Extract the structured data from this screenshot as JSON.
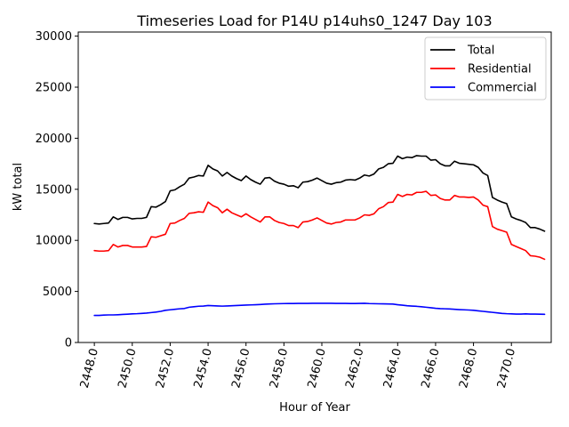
{
  "chart_data": {
    "type": "line",
    "title": "Timeseries Load for P14U p14uhs0_1247  Day 103",
    "xlabel": "Hour of Year",
    "ylabel": "kW total",
    "xlim": [
      2447.15,
      2472.1
    ],
    "ylim": [
      0,
      30400
    ],
    "x_ticks": [
      2448,
      2450,
      2452,
      2454,
      2456,
      2458,
      2460,
      2462,
      2464,
      2466,
      2468,
      2470
    ],
    "x_tick_labels": [
      "2448.0",
      "2450.0",
      "2452.0",
      "2454.0",
      "2456.0",
      "2458.0",
      "2460.0",
      "2462.0",
      "2464.0",
      "2466.0",
      "2468.0",
      "2470.0"
    ],
    "y_ticks": [
      0,
      5000,
      10000,
      15000,
      20000,
      25000,
      30000
    ],
    "y_tick_labels": [
      "0",
      "5000",
      "10000",
      "15000",
      "20000",
      "25000",
      "30000"
    ],
    "grid": false,
    "legend_position": "top-right",
    "x": [
      2448.0,
      2448.25,
      2448.5,
      2448.75,
      2449.0,
      2449.25,
      2449.5,
      2449.75,
      2450.0,
      2450.25,
      2450.5,
      2450.75,
      2451.0,
      2451.25,
      2451.5,
      2451.75,
      2452.0,
      2452.25,
      2452.5,
      2452.75,
      2453.0,
      2453.25,
      2453.5,
      2453.75,
      2454.0,
      2454.25,
      2454.5,
      2454.75,
      2455.0,
      2455.25,
      2455.5,
      2455.75,
      2456.0,
      2456.25,
      2456.5,
      2456.75,
      2457.0,
      2457.25,
      2457.5,
      2457.75,
      2458.0,
      2458.25,
      2458.5,
      2458.75,
      2459.0,
      2459.25,
      2459.5,
      2459.75,
      2460.0,
      2460.25,
      2460.5,
      2460.75,
      2461.0,
      2461.25,
      2461.5,
      2461.75,
      2462.0,
      2462.25,
      2462.5,
      2462.75,
      2463.0,
      2463.25,
      2463.5,
      2463.75,
      2464.0,
      2464.25,
      2464.5,
      2464.75,
      2465.0,
      2465.25,
      2465.5,
      2465.75,
      2466.0,
      2466.25,
      2466.5,
      2466.75,
      2467.0,
      2467.25,
      2467.5,
      2467.75,
      2468.0,
      2468.25,
      2468.5,
      2468.75,
      2469.0,
      2469.25,
      2469.5,
      2469.75,
      2470.0,
      2470.25,
      2470.5,
      2470.75,
      2471.0,
      2471.25,
      2471.5,
      2471.75
    ],
    "series": [
      {
        "name": "Total",
        "color": "#000000",
        "values": [
          11650,
          11600,
          11650,
          11700,
          12300,
          12050,
          12250,
          12250,
          12100,
          12150,
          12150,
          12250,
          13300,
          13250,
          13500,
          13800,
          14850,
          14950,
          15250,
          15500,
          16100,
          16200,
          16350,
          16300,
          17350,
          17000,
          16800,
          16300,
          16650,
          16300,
          16050,
          15850,
          16300,
          15950,
          15700,
          15500,
          16100,
          16150,
          15800,
          15600,
          15500,
          15300,
          15350,
          15150,
          15700,
          15750,
          15900,
          16100,
          15850,
          15600,
          15500,
          15650,
          15700,
          15900,
          15950,
          15900,
          16100,
          16400,
          16300,
          16500,
          17000,
          17150,
          17500,
          17550,
          18250,
          18000,
          18150,
          18100,
          18300,
          18250,
          18250,
          17850,
          17900,
          17500,
          17300,
          17300,
          17750,
          17550,
          17500,
          17450,
          17400,
          17150,
          16600,
          16350,
          14200,
          13950,
          13750,
          13600,
          12300,
          12100,
          11950,
          11750,
          11250,
          11250,
          11100,
          10900
        ]
      },
      {
        "name": "Residential",
        "color": "#ff0000",
        "values": [
          9000,
          8950,
          8950,
          9000,
          9600,
          9350,
          9500,
          9500,
          9350,
          9350,
          9350,
          9400,
          10350,
          10300,
          10450,
          10600,
          11650,
          11700,
          11950,
          12150,
          12650,
          12700,
          12800,
          12750,
          13750,
          13400,
          13200,
          12700,
          13050,
          12700,
          12500,
          12300,
          12600,
          12300,
          12050,
          11800,
          12300,
          12300,
          11950,
          11750,
          11650,
          11450,
          11450,
          11250,
          11800,
          11850,
          12000,
          12200,
          11950,
          11700,
          11600,
          11750,
          11800,
          12000,
          12000,
          12000,
          12200,
          12500,
          12450,
          12600,
          13100,
          13300,
          13700,
          13750,
          14500,
          14300,
          14500,
          14450,
          14700,
          14700,
          14800,
          14400,
          14450,
          14100,
          13950,
          13950,
          14400,
          14250,
          14250,
          14200,
          14250,
          13950,
          13450,
          13300,
          11350,
          11100,
          10950,
          10800,
          9600,
          9400,
          9200,
          9000,
          8500,
          8450,
          8350,
          8150
        ]
      },
      {
        "name": "Commercial",
        "color": "#0000ff",
        "values": [
          2650,
          2650,
          2680,
          2700,
          2700,
          2720,
          2750,
          2770,
          2800,
          2820,
          2850,
          2880,
          2930,
          2980,
          3050,
          3150,
          3200,
          3250,
          3300,
          3330,
          3450,
          3500,
          3550,
          3570,
          3620,
          3600,
          3580,
          3560,
          3580,
          3600,
          3620,
          3640,
          3660,
          3680,
          3700,
          3720,
          3750,
          3770,
          3790,
          3800,
          3810,
          3815,
          3820,
          3825,
          3830,
          3830,
          3835,
          3840,
          3840,
          3840,
          3835,
          3830,
          3830,
          3825,
          3820,
          3820,
          3830,
          3840,
          3810,
          3800,
          3790,
          3780,
          3770,
          3760,
          3700,
          3650,
          3600,
          3570,
          3540,
          3500,
          3450,
          3400,
          3350,
          3320,
          3300,
          3280,
          3250,
          3220,
          3200,
          3180,
          3150,
          3100,
          3050,
          3000,
          2950,
          2900,
          2850,
          2820,
          2800,
          2780,
          2780,
          2800,
          2780,
          2780,
          2770,
          2760
        ]
      }
    ]
  }
}
